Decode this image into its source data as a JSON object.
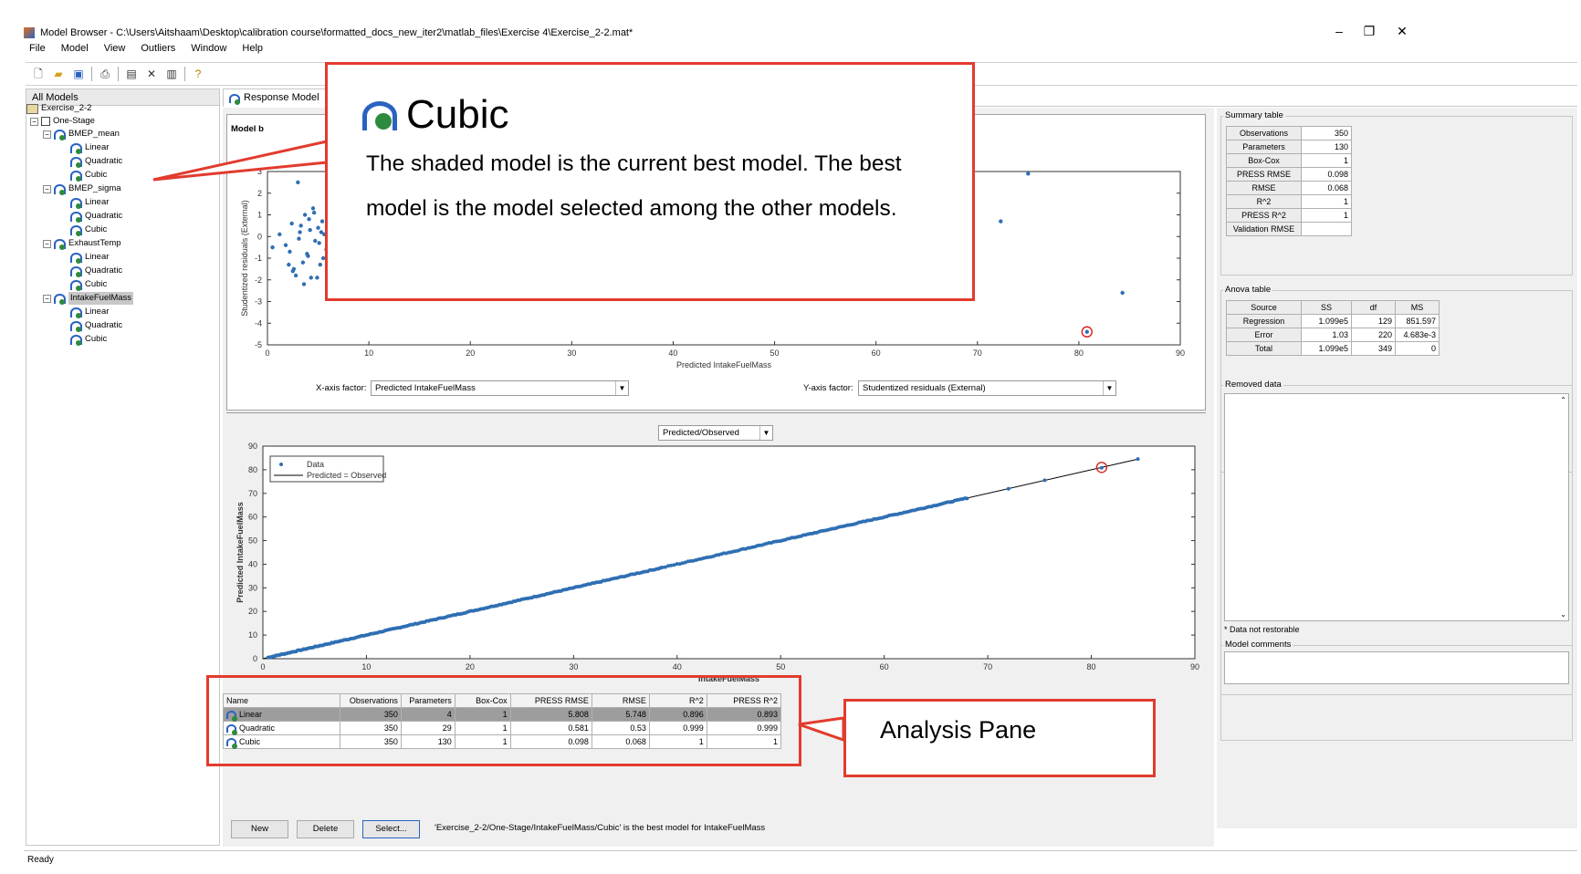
{
  "window": {
    "title": "Model Browser - C:\\Users\\Aitshaam\\Desktop\\calibration course\\formatted_docs_new_iter2\\matlab_files\\Exercise 4\\Exercise_2-2.mat*",
    "minimize": "–",
    "restore": "❐",
    "close": "✕"
  },
  "menu": [
    "File",
    "Model",
    "View",
    "Outliers",
    "Window",
    "Help"
  ],
  "tree": {
    "header": "All Models",
    "root": "Exercise_2-2",
    "stage": "One-Stage",
    "responses": [
      {
        "name": "BMEP_mean",
        "children": [
          "Linear",
          "Quadratic",
          "Cubic"
        ]
      },
      {
        "name": "BMEP_sigma",
        "children": [
          "Linear",
          "Quadratic",
          "Cubic"
        ]
      },
      {
        "name": "ExhaustTemp",
        "children": [
          "Linear",
          "Quadratic",
          "Cubic"
        ]
      },
      {
        "name": "IntakeFuelMass",
        "children": [
          "Linear",
          "Quadratic",
          "Cubic"
        ]
      }
    ]
  },
  "tab_label": "Response Model",
  "model_label": "Model b",
  "residual_plot": {
    "xlabel": "Predicted IntakeFuelMass",
    "ylabel": "Studentized residuals (External)",
    "x_factor_label": "X-axis factor:",
    "x_factor_value": "Predicted IntakeFuelMass",
    "y_factor_label": "Y-axis factor:",
    "y_factor_value": "Studentized residuals (External)"
  },
  "pvo_plot": {
    "dropdown": "Predicted/Observed",
    "xlabel": "IntakeFuelMass",
    "ylabel": "Predicted IntakeFuelMass",
    "legend_data": "Data",
    "legend_line": "Predicted = Observed"
  },
  "chart_data": [
    {
      "type": "scatter",
      "title": "",
      "xlabel": "Predicted IntakeFuelMass",
      "ylabel": "Studentized residuals (External)",
      "xlim": [
        0,
        90
      ],
      "ylim": [
        -5,
        3
      ],
      "xticks": [
        0,
        10,
        20,
        30,
        40,
        50,
        60,
        70,
        80,
        90
      ],
      "yticks": [
        -5,
        -4,
        -3,
        -2,
        -1,
        0,
        1,
        2,
        3
      ],
      "x": [
        0.5,
        1.2,
        1.8,
        2.1,
        2.4,
        2.6,
        3.0,
        3.2,
        3.5,
        3.7,
        3.9,
        4.1,
        4.3,
        4.5,
        4.7,
        5.0,
        5.2,
        5.4,
        5.6,
        5.8,
        6.0,
        2.2,
        2.8,
        3.3,
        4.0,
        4.6,
        5.1,
        5.5,
        6.0,
        3.6,
        4.2,
        2.5,
        3.1,
        4.9,
        5.3,
        75.0,
        72.3,
        84.3,
        80.8
      ],
      "y": [
        -0.5,
        0.1,
        -0.4,
        -1.3,
        0.6,
        -1.5,
        2.5,
        0.2,
        -1.2,
        1.0,
        -0.8,
        0.8,
        -1.9,
        1.3,
        -0.2,
        0.4,
        -1.3,
        0.7,
        0.1,
        -0.6,
        0.8,
        -0.7,
        -1.8,
        0.5,
        -0.9,
        1.1,
        -0.3,
        -1.0,
        -1.0,
        -2.2,
        0.3,
        -1.6,
        -0.1,
        -1.9,
        0.2,
        2.9,
        0.7,
        -2.6,
        -4.4
      ],
      "highlight": {
        "x": 80.8,
        "y": -4.4
      }
    },
    {
      "type": "scatter",
      "title": "",
      "xlabel": "IntakeFuelMass",
      "ylabel": "Predicted IntakeFuelMass",
      "xlim": [
        0,
        90
      ],
      "ylim": [
        0,
        90
      ],
      "xticks": [
        0,
        10,
        20,
        30,
        40,
        50,
        60,
        70,
        80,
        90
      ],
      "yticks": [
        0,
        10,
        20,
        30,
        40,
        50,
        60,
        70,
        80,
        90
      ],
      "series": [
        {
          "name": "Data"
        },
        {
          "name": "Predicted = Observed"
        }
      ],
      "point_count": 350,
      "x_range": [
        0.5,
        84.5
      ],
      "highlight": {
        "x": 81,
        "y": 81
      }
    }
  ],
  "summary": {
    "label": "Summary table",
    "rows": [
      [
        "Observations",
        "350"
      ],
      [
        "Parameters",
        "130"
      ],
      [
        "Box-Cox",
        "1"
      ],
      [
        "PRESS RMSE",
        "0.098"
      ],
      [
        "RMSE",
        "0.068"
      ],
      [
        "R^2",
        "1"
      ],
      [
        "PRESS R^2",
        "1"
      ],
      [
        "Validation RMSE",
        ""
      ]
    ]
  },
  "anova": {
    "label": "Anova table",
    "header": [
      "Source",
      "SS",
      "df",
      "MS"
    ],
    "rows": [
      [
        "Regression",
        "1.099e5",
        "129",
        "851.597"
      ],
      [
        "Error",
        "1.03",
        "220",
        "4.683e-3"
      ],
      [
        "Total",
        "1.099e5",
        "349",
        "0"
      ]
    ]
  },
  "removed": {
    "label": "Removed data",
    "note": "* Data not restorable"
  },
  "comments": {
    "label": "Model comments"
  },
  "analysis": {
    "header": [
      "Name",
      "Observations",
      "Parameters",
      "Box-Cox",
      "PRESS RMSE",
      "RMSE",
      "R^2",
      "PRESS R^2"
    ],
    "rows": [
      [
        "Linear",
        "350",
        "4",
        "1",
        "5.808",
        "5.748",
        "0.896",
        "0.893"
      ],
      [
        "Quadratic",
        "350",
        "29",
        "1",
        "0.581",
        "0.53",
        "0.999",
        "0.999"
      ],
      [
        "Cubic",
        "350",
        "130",
        "1",
        "0.098",
        "0.068",
        "1",
        "1"
      ]
    ]
  },
  "buttons": {
    "new": "New",
    "delete": "Delete",
    "select": "Select..."
  },
  "best_model_msg": "'Exercise_2-2/One-Stage/IntakeFuelMass/Cubic' is the best model for IntakeFuelMass",
  "status": "Ready",
  "callout_main": {
    "title": "Cubic",
    "text": "The shaded model is the current best model. The best model is the model selected among the other models."
  },
  "callout_analysis": "Analysis Pane",
  "colors": {
    "accent_red": "#e23b2e",
    "point_blue": "#2f6fb3",
    "selected_row": "#9d9d9d"
  }
}
